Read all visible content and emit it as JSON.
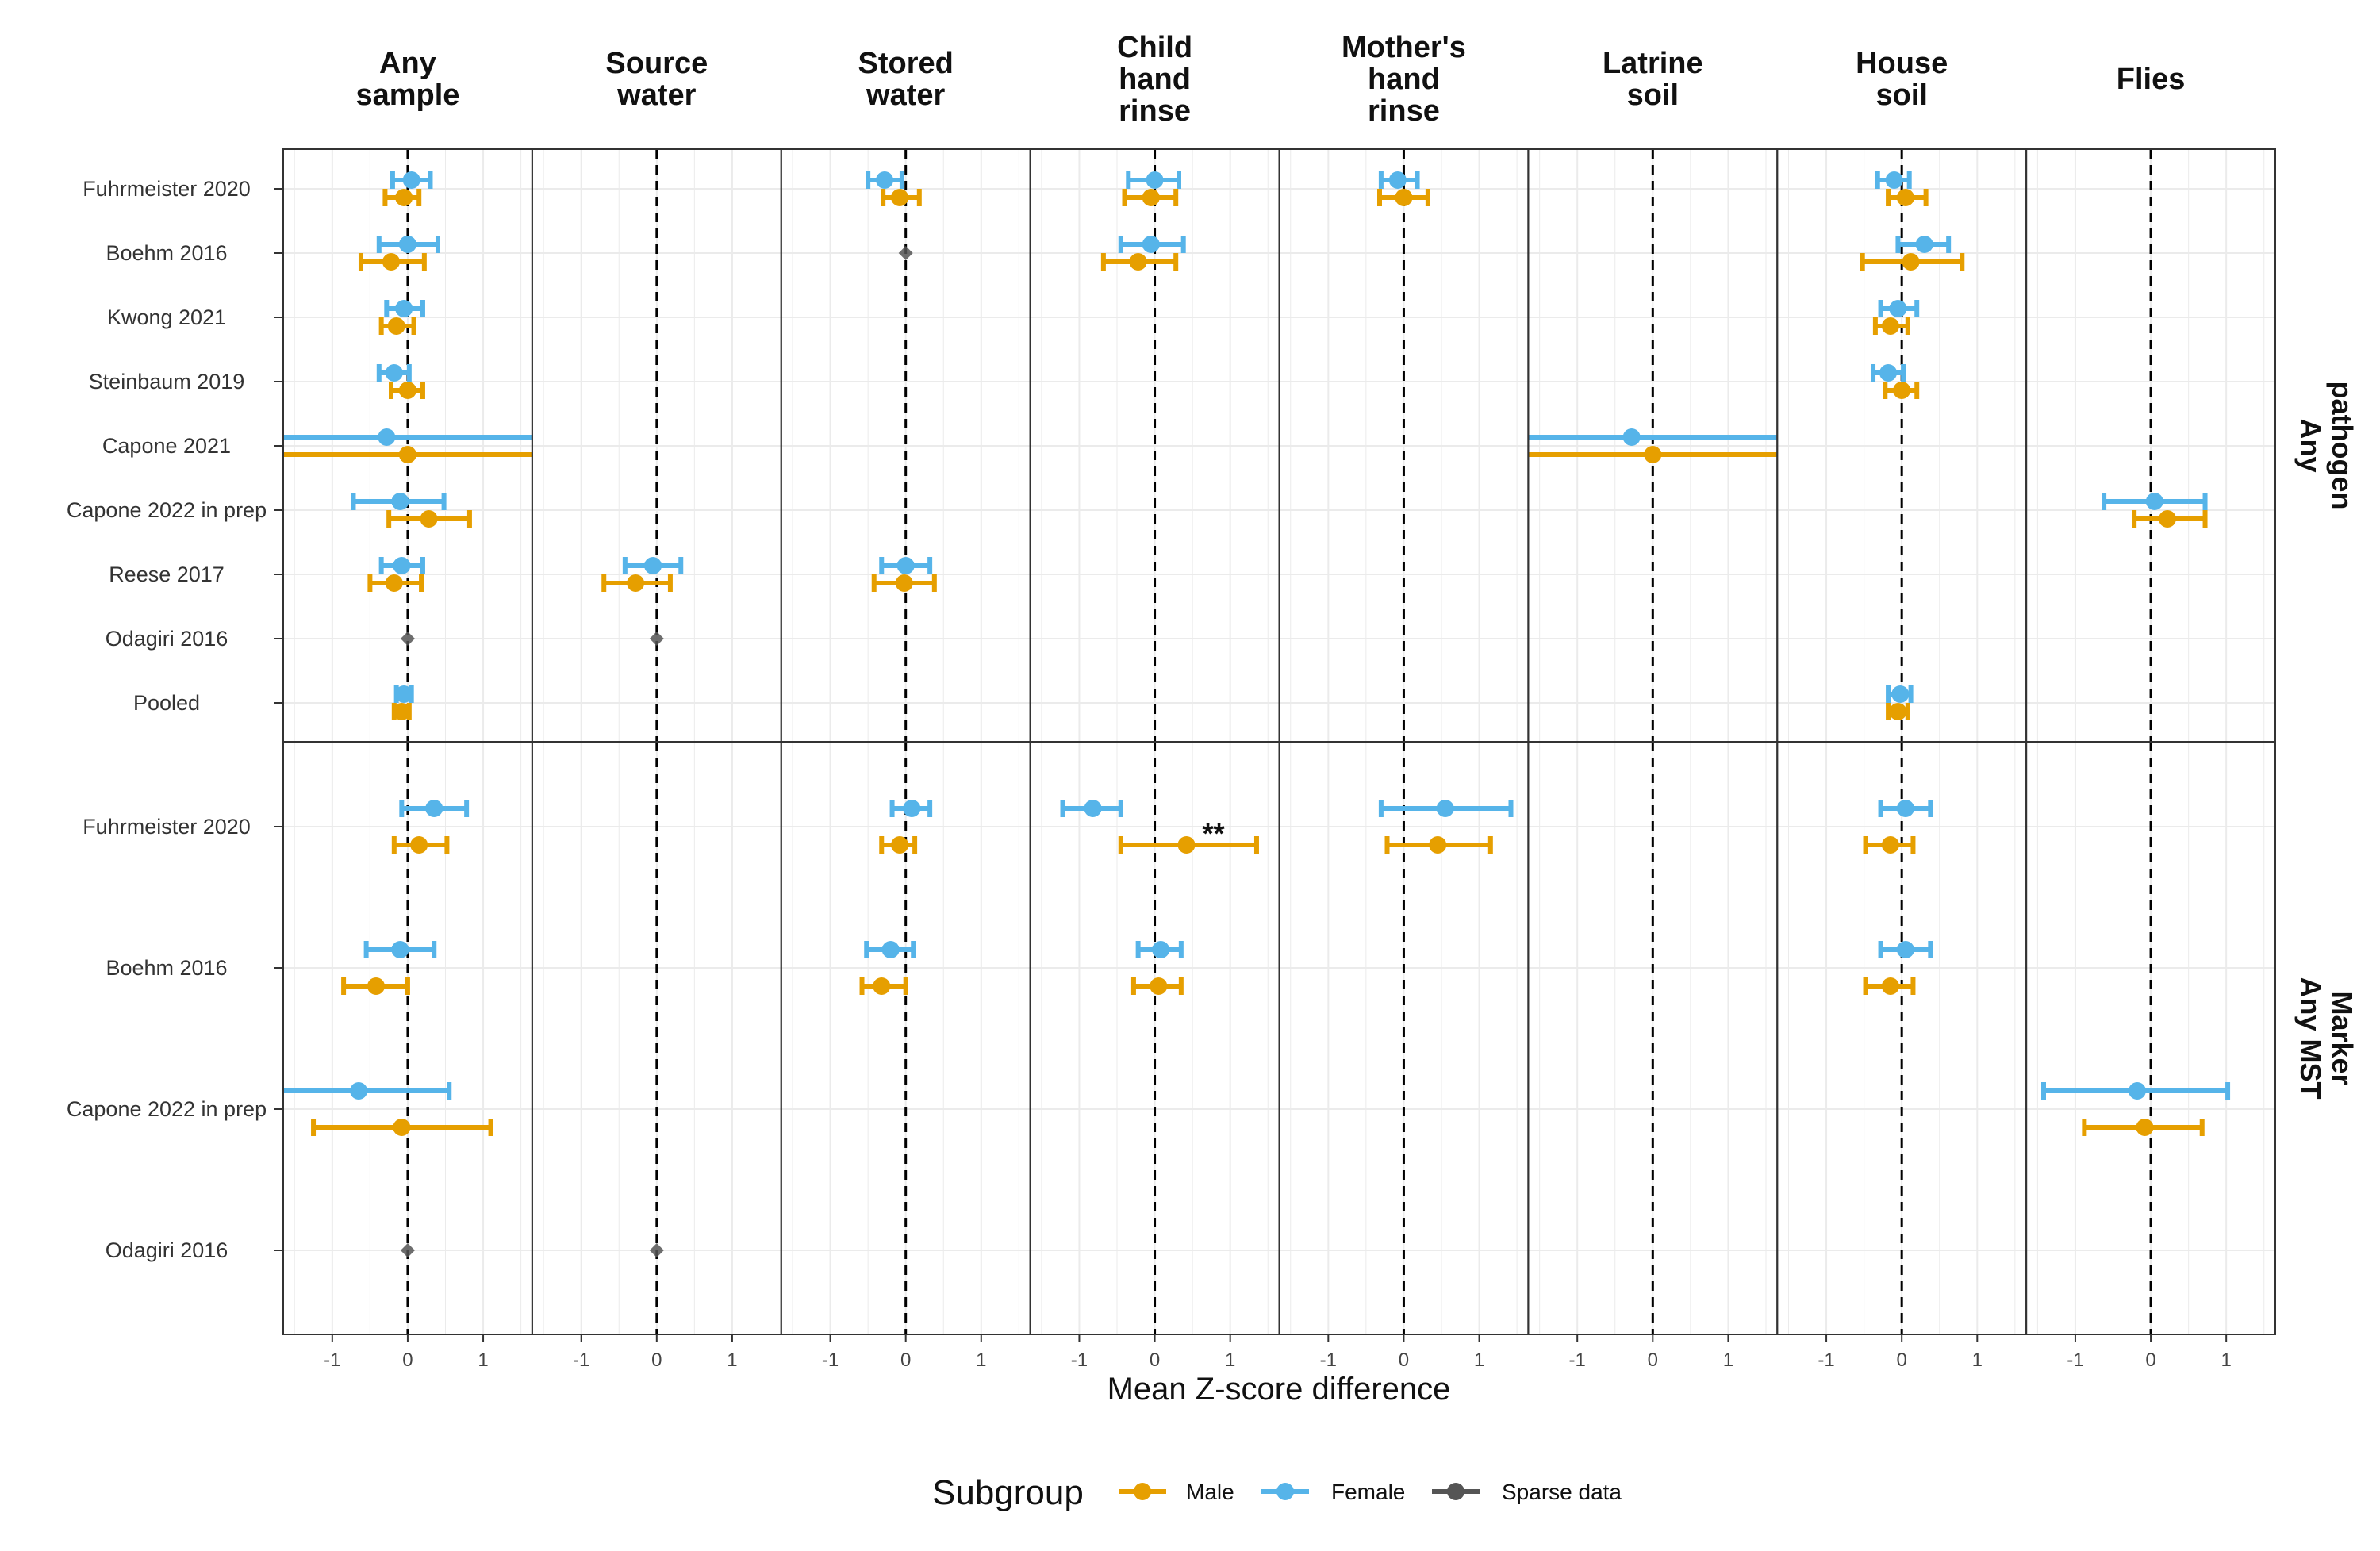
{
  "colors": {
    "male": "#E69F00",
    "female": "#56B4E9",
    "sparse": "#555555"
  },
  "chart_data": {
    "type": "forest",
    "xlabel": "Mean Z-score difference",
    "x_ticks": [
      "-1",
      "0",
      "1"
    ],
    "xlim": [
      -1.65,
      1.65
    ],
    "columns": [
      {
        "key": "any_sample",
        "lines": [
          "Any",
          "sample"
        ]
      },
      {
        "key": "source_water",
        "lines": [
          "Source",
          "water"
        ]
      },
      {
        "key": "stored_water",
        "lines": [
          "Stored",
          "water"
        ]
      },
      {
        "key": "child_hand",
        "lines": [
          "Child",
          "hand",
          "rinse"
        ]
      },
      {
        "key": "mother_hand",
        "lines": [
          "Mother's",
          "hand",
          "rinse"
        ]
      },
      {
        "key": "latrine_soil",
        "lines": [
          "Latrine",
          "soil"
        ]
      },
      {
        "key": "house_soil",
        "lines": [
          "House",
          "soil"
        ]
      },
      {
        "key": "flies",
        "lines": [
          "Flies"
        ]
      }
    ],
    "rows": [
      {
        "key": "pathogen",
        "strip": [
          "Any",
          "pathogen"
        ],
        "studies": [
          "Fuhrmeister 2020",
          "Boehm 2016",
          "Kwong 2021",
          "Steinbaum 2019",
          "Capone 2021",
          "Capone 2022 in prep",
          "Reese 2017",
          "Odagiri 2016",
          "Pooled"
        ]
      },
      {
        "key": "mst",
        "strip": [
          "Any MST",
          "Marker"
        ],
        "studies": [
          "Fuhrmeister 2020",
          "Boehm 2016",
          "Capone 2022 in prep",
          "Odagiri 2016"
        ]
      }
    ],
    "series_names": {
      "male": "Male",
      "female": "Female",
      "sparse": "Sparse data"
    },
    "estimates": [
      {
        "row": 0,
        "study": 0,
        "col": 0,
        "group": "female",
        "est": 0.05,
        "lo": -0.2,
        "hi": 0.3
      },
      {
        "row": 0,
        "study": 0,
        "col": 0,
        "group": "male",
        "est": -0.05,
        "lo": -0.3,
        "hi": 0.15
      },
      {
        "row": 0,
        "study": 0,
        "col": 2,
        "group": "female",
        "est": -0.28,
        "lo": -0.5,
        "hi": -0.05
      },
      {
        "row": 0,
        "study": 0,
        "col": 2,
        "group": "male",
        "est": -0.08,
        "lo": -0.3,
        "hi": 0.18
      },
      {
        "row": 0,
        "study": 0,
        "col": 3,
        "group": "female",
        "est": 0.0,
        "lo": -0.35,
        "hi": 0.32
      },
      {
        "row": 0,
        "study": 0,
        "col": 3,
        "group": "male",
        "est": -0.05,
        "lo": -0.4,
        "hi": 0.28
      },
      {
        "row": 0,
        "study": 0,
        "col": 4,
        "group": "female",
        "est": -0.08,
        "lo": -0.3,
        "hi": 0.18
      },
      {
        "row": 0,
        "study": 0,
        "col": 4,
        "group": "male",
        "est": 0.0,
        "lo": -0.32,
        "hi": 0.32
      },
      {
        "row": 0,
        "study": 0,
        "col": 6,
        "group": "female",
        "est": -0.1,
        "lo": -0.32,
        "hi": 0.1
      },
      {
        "row": 0,
        "study": 0,
        "col": 6,
        "group": "male",
        "est": 0.05,
        "lo": -0.18,
        "hi": 0.32
      },
      {
        "row": 0,
        "study": 1,
        "col": 0,
        "group": "female",
        "est": 0.0,
        "lo": -0.38,
        "hi": 0.4
      },
      {
        "row": 0,
        "study": 1,
        "col": 0,
        "group": "male",
        "est": -0.22,
        "lo": -0.62,
        "hi": 0.22
      },
      {
        "row": 0,
        "study": 1,
        "col": 2,
        "group": "sparse",
        "est": 0.0
      },
      {
        "row": 0,
        "study": 1,
        "col": 3,
        "group": "female",
        "est": -0.05,
        "lo": -0.45,
        "hi": 0.38
      },
      {
        "row": 0,
        "study": 1,
        "col": 3,
        "group": "male",
        "est": -0.22,
        "lo": -0.68,
        "hi": 0.28
      },
      {
        "row": 0,
        "study": 1,
        "col": 6,
        "group": "female",
        "est": 0.3,
        "lo": -0.05,
        "hi": 0.62
      },
      {
        "row": 0,
        "study": 1,
        "col": 6,
        "group": "male",
        "est": 0.12,
        "lo": -0.52,
        "hi": 0.8
      },
      {
        "row": 0,
        "study": 2,
        "col": 0,
        "group": "female",
        "est": -0.05,
        "lo": -0.28,
        "hi": 0.2
      },
      {
        "row": 0,
        "study": 2,
        "col": 0,
        "group": "male",
        "est": -0.15,
        "lo": -0.35,
        "hi": 0.08
      },
      {
        "row": 0,
        "study": 2,
        "col": 6,
        "group": "female",
        "est": -0.05,
        "lo": -0.28,
        "hi": 0.2
      },
      {
        "row": 0,
        "study": 2,
        "col": 6,
        "group": "male",
        "est": -0.15,
        "lo": -0.35,
        "hi": 0.08
      },
      {
        "row": 0,
        "study": 3,
        "col": 0,
        "group": "female",
        "est": -0.18,
        "lo": -0.38,
        "hi": 0.02
      },
      {
        "row": 0,
        "study": 3,
        "col": 0,
        "group": "male",
        "est": 0.0,
        "lo": -0.22,
        "hi": 0.2
      },
      {
        "row": 0,
        "study": 3,
        "col": 6,
        "group": "female",
        "est": -0.18,
        "lo": -0.38,
        "hi": 0.02
      },
      {
        "row": 0,
        "study": 3,
        "col": 6,
        "group": "male",
        "est": 0.0,
        "lo": -0.22,
        "hi": 0.2
      },
      {
        "row": 0,
        "study": 4,
        "col": 0,
        "group": "female",
        "est": -0.28,
        "lo": -1.65,
        "hi": 1.65
      },
      {
        "row": 0,
        "study": 4,
        "col": 0,
        "group": "male",
        "est": 0.0,
        "lo": -1.65,
        "hi": 1.65
      },
      {
        "row": 0,
        "study": 4,
        "col": 5,
        "group": "female",
        "est": -0.28,
        "lo": -1.65,
        "hi": 1.65
      },
      {
        "row": 0,
        "study": 4,
        "col": 5,
        "group": "male",
        "est": 0.0,
        "lo": -1.65,
        "hi": 1.65
      },
      {
        "row": 0,
        "study": 5,
        "col": 0,
        "group": "female",
        "est": -0.1,
        "lo": -0.72,
        "hi": 0.48
      },
      {
        "row": 0,
        "study": 5,
        "col": 0,
        "group": "male",
        "est": 0.28,
        "lo": -0.25,
        "hi": 0.82
      },
      {
        "row": 0,
        "study": 5,
        "col": 7,
        "group": "female",
        "est": 0.05,
        "lo": -0.62,
        "hi": 0.72
      },
      {
        "row": 0,
        "study": 5,
        "col": 7,
        "group": "male",
        "est": 0.22,
        "lo": -0.22,
        "hi": 0.72
      },
      {
        "row": 0,
        "study": 6,
        "col": 0,
        "group": "female",
        "est": -0.08,
        "lo": -0.35,
        "hi": 0.2
      },
      {
        "row": 0,
        "study": 6,
        "col": 0,
        "group": "male",
        "est": -0.18,
        "lo": -0.5,
        "hi": 0.18
      },
      {
        "row": 0,
        "study": 6,
        "col": 1,
        "group": "female",
        "est": -0.05,
        "lo": -0.42,
        "hi": 0.32
      },
      {
        "row": 0,
        "study": 6,
        "col": 1,
        "group": "male",
        "est": -0.28,
        "lo": -0.7,
        "hi": 0.18
      },
      {
        "row": 0,
        "study": 6,
        "col": 2,
        "group": "female",
        "est": 0.0,
        "lo": -0.32,
        "hi": 0.32
      },
      {
        "row": 0,
        "study": 6,
        "col": 2,
        "group": "male",
        "est": -0.02,
        "lo": -0.42,
        "hi": 0.38
      },
      {
        "row": 0,
        "study": 7,
        "col": 0,
        "group": "sparse",
        "est": 0.0
      },
      {
        "row": 0,
        "study": 7,
        "col": 1,
        "group": "sparse",
        "est": 0.0
      },
      {
        "row": 0,
        "study": 8,
        "col": 0,
        "group": "female",
        "est": -0.05,
        "lo": -0.15,
        "hi": 0.05
      },
      {
        "row": 0,
        "study": 8,
        "col": 0,
        "group": "male",
        "est": -0.08,
        "lo": -0.18,
        "hi": 0.02
      },
      {
        "row": 0,
        "study": 8,
        "col": 6,
        "group": "female",
        "est": -0.02,
        "lo": -0.18,
        "hi": 0.12
      },
      {
        "row": 0,
        "study": 8,
        "col": 6,
        "group": "male",
        "est": -0.05,
        "lo": -0.18,
        "hi": 0.08
      },
      {
        "row": 1,
        "study": 0,
        "col": 0,
        "group": "female",
        "est": 0.35,
        "lo": -0.08,
        "hi": 0.78
      },
      {
        "row": 1,
        "study": 0,
        "col": 0,
        "group": "male",
        "est": 0.15,
        "lo": -0.18,
        "hi": 0.52
      },
      {
        "row": 1,
        "study": 0,
        "col": 2,
        "group": "female",
        "est": 0.08,
        "lo": -0.18,
        "hi": 0.32
      },
      {
        "row": 1,
        "study": 0,
        "col": 2,
        "group": "male",
        "est": -0.08,
        "lo": -0.32,
        "hi": 0.12
      },
      {
        "row": 1,
        "study": 0,
        "col": 3,
        "group": "female",
        "est": -0.82,
        "lo": -1.22,
        "hi": -0.45
      },
      {
        "row": 1,
        "study": 0,
        "col": 3,
        "group": "male",
        "est": 0.42,
        "lo": -0.45,
        "hi": 1.35,
        "label": "**"
      },
      {
        "row": 1,
        "study": 0,
        "col": 4,
        "group": "female",
        "est": 0.55,
        "lo": -0.3,
        "hi": 1.42
      },
      {
        "row": 1,
        "study": 0,
        "col": 4,
        "group": "male",
        "est": 0.45,
        "lo": -0.22,
        "hi": 1.15
      },
      {
        "row": 1,
        "study": 0,
        "col": 6,
        "group": "female",
        "est": 0.05,
        "lo": -0.28,
        "hi": 0.38
      },
      {
        "row": 1,
        "study": 0,
        "col": 6,
        "group": "male",
        "est": -0.15,
        "lo": -0.48,
        "hi": 0.15
      },
      {
        "row": 1,
        "study": 1,
        "col": 0,
        "group": "female",
        "est": -0.1,
        "lo": -0.55,
        "hi": 0.35
      },
      {
        "row": 1,
        "study": 1,
        "col": 0,
        "group": "male",
        "est": -0.42,
        "lo": -0.85,
        "hi": 0.0
      },
      {
        "row": 1,
        "study": 1,
        "col": 2,
        "group": "female",
        "est": -0.2,
        "lo": -0.52,
        "hi": 0.1
      },
      {
        "row": 1,
        "study": 1,
        "col": 2,
        "group": "male",
        "est": -0.32,
        "lo": -0.58,
        "hi": 0.0
      },
      {
        "row": 1,
        "study": 1,
        "col": 3,
        "group": "female",
        "est": 0.08,
        "lo": -0.22,
        "hi": 0.35
      },
      {
        "row": 1,
        "study": 1,
        "col": 3,
        "group": "male",
        "est": 0.05,
        "lo": -0.28,
        "hi": 0.35
      },
      {
        "row": 1,
        "study": 1,
        "col": 6,
        "group": "female",
        "est": 0.05,
        "lo": -0.28,
        "hi": 0.38
      },
      {
        "row": 1,
        "study": 1,
        "col": 6,
        "group": "male",
        "est": -0.15,
        "lo": -0.48,
        "hi": 0.15
      },
      {
        "row": 1,
        "study": 2,
        "col": 0,
        "group": "female",
        "est": -0.65,
        "lo": -1.65,
        "hi": 0.55
      },
      {
        "row": 1,
        "study": 2,
        "col": 0,
        "group": "male",
        "est": -0.08,
        "lo": -1.25,
        "hi": 1.1
      },
      {
        "row": 1,
        "study": 2,
        "col": 7,
        "group": "female",
        "est": -0.18,
        "lo": -1.42,
        "hi": 1.02
      },
      {
        "row": 1,
        "study": 2,
        "col": 7,
        "group": "male",
        "est": -0.08,
        "lo": -0.88,
        "hi": 0.68
      },
      {
        "row": 1,
        "study": 3,
        "col": 0,
        "group": "sparse",
        "est": 0.0
      },
      {
        "row": 1,
        "study": 3,
        "col": 1,
        "group": "sparse",
        "est": 0.0
      }
    ],
    "legend": {
      "title": "Subgroup",
      "position": "bottom"
    },
    "grid": true
  }
}
